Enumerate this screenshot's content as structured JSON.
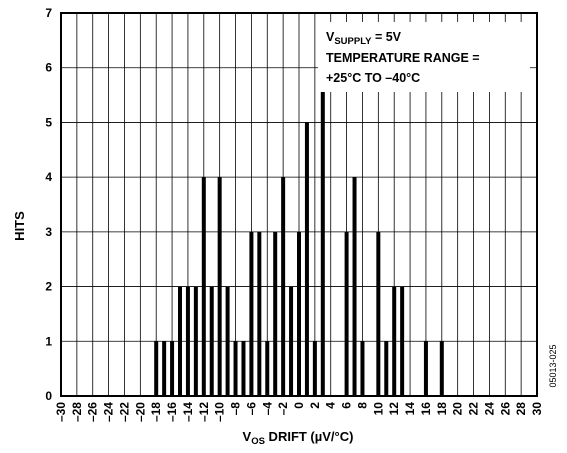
{
  "chart_data": {
    "type": "bar",
    "xlabel_parts": {
      "v": "V",
      "sub": "OS",
      "rest": " DRIFT (µV/°C)"
    },
    "ylabel": "HITS",
    "xlim": [
      -30,
      30
    ],
    "ylim": [
      0,
      7
    ],
    "x_ticks": [
      -30,
      -28,
      -26,
      -24,
      -22,
      -20,
      -18,
      -16,
      -14,
      -12,
      -10,
      -8,
      -6,
      -4,
      -2,
      0,
      2,
      4,
      6,
      8,
      10,
      12,
      14,
      16,
      18,
      20,
      22,
      24,
      26,
      28,
      30
    ],
    "x_tick_labels": [
      "–30",
      "–28",
      "–26",
      "–24",
      "–22",
      "–20",
      "–18",
      "–16",
      "–14",
      "–12",
      "–10",
      "–8",
      "–6",
      "–4",
      "–2",
      "0",
      "2",
      "4",
      "6",
      "8",
      "10",
      "12",
      "14",
      "16",
      "18",
      "20",
      "22",
      "24",
      "26",
      "28",
      "30"
    ],
    "y_ticks": [
      0,
      1,
      2,
      3,
      4,
      5,
      6,
      7
    ],
    "y_tick_labels": [
      "0",
      "1",
      "2",
      "3",
      "4",
      "5",
      "6",
      "7"
    ],
    "grid": true,
    "x": [
      -18,
      -17,
      -16,
      -15,
      -14,
      -13,
      -12,
      -11,
      -10,
      -9,
      -8,
      -7,
      -6,
      -5,
      -4,
      -3,
      -2,
      -1,
      0,
      1,
      2,
      3,
      6,
      7,
      8,
      10,
      11,
      12,
      13,
      16,
      18
    ],
    "values": [
      1,
      1,
      1,
      2,
      2,
      2,
      4,
      2,
      4,
      2,
      1,
      1,
      3,
      3,
      1,
      3,
      4,
      2,
      3,
      5,
      1,
      6,
      3,
      4,
      1,
      3,
      1,
      2,
      2,
      1,
      1
    ],
    "annotation": {
      "line1_v": "V",
      "line1_sub": "SUPPLY",
      "line1_rest": " = 5V",
      "line2": "TEMPERATURE RANGE =",
      "line3": "+25°C TO –40°C"
    },
    "figure_id": "05013-025"
  }
}
